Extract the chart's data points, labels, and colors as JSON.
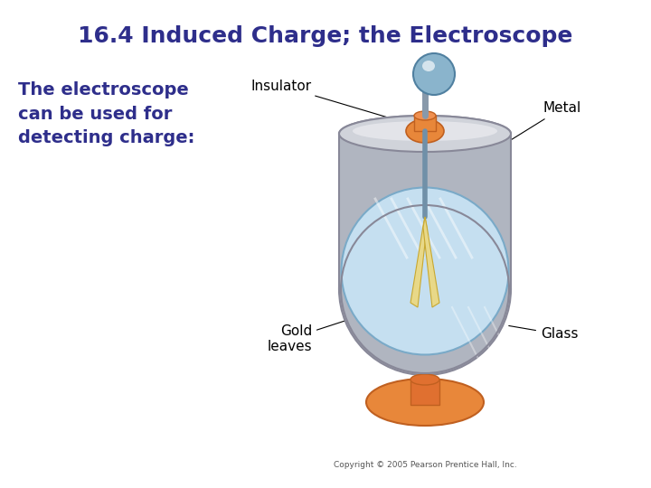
{
  "title": "16.4 Induced Charge; the Electroscope",
  "title_color": "#2e2e8b",
  "title_fontsize": 18,
  "body_text": "The electroscope\ncan be used for\ndetecting charge:",
  "body_text_color": "#2e2e8b",
  "body_fontsize": 14,
  "background_color": "#ffffff",
  "copyright": "Copyright © 2005 Pearson Prentice Hall, Inc.",
  "label_color": "#000000",
  "label_fontsize": 11
}
